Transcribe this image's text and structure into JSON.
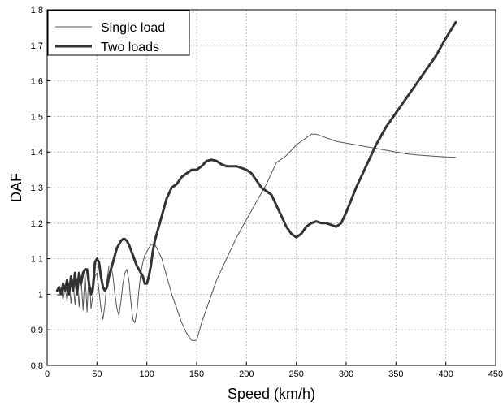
{
  "chart_data": {
    "type": "line",
    "title": "",
    "xlabel": "Speed (km/h)",
    "ylabel": "DAF",
    "xlim": [
      0,
      450
    ],
    "ylim": [
      0.8,
      1.8
    ],
    "xticks": [
      "0",
      "50",
      "100",
      "150",
      "200",
      "250",
      "300",
      "350",
      "400",
      "450"
    ],
    "yticks": [
      "0.8",
      "0.9",
      "1",
      "1.1",
      "1.2",
      "1.3",
      "1.4",
      "1.5",
      "1.6",
      "1.7",
      "1.8"
    ],
    "grid": true,
    "legend_position": "top-left",
    "series": [
      {
        "name": "Single load",
        "style": "thin",
        "color": "#555555",
        "x": [
          10,
          12,
          14,
          16,
          18,
          20,
          22,
          24,
          26,
          28,
          30,
          32,
          34,
          36,
          38,
          40,
          42,
          44,
          46,
          48,
          50,
          52,
          54,
          56,
          58,
          60,
          62,
          64,
          66,
          68,
          70,
          72,
          74,
          76,
          78,
          80,
          82,
          84,
          86,
          88,
          90,
          92,
          94,
          96,
          98,
          100,
          102,
          104,
          106,
          108,
          110,
          115,
          120,
          125,
          130,
          135,
          140,
          145,
          148,
          150,
          155,
          160,
          170,
          180,
          190,
          200,
          210,
          220,
          230,
          240,
          250,
          255,
          260,
          265,
          270,
          275,
          280,
          290,
          300,
          310,
          320,
          330,
          340,
          350,
          360,
          370,
          380,
          390,
          400,
          410
        ],
        "y": [
          1.0,
          0.995,
          1.01,
          0.985,
          1.02,
          0.98,
          1.03,
          0.975,
          1.035,
          0.97,
          1.045,
          0.965,
          1.05,
          0.955,
          1.06,
          0.95,
          1.065,
          0.96,
          1.0,
          1.05,
          1.06,
          1.01,
          0.96,
          0.93,
          0.97,
          1.04,
          1.08,
          1.08,
          1.05,
          1.0,
          0.96,
          0.94,
          0.98,
          1.03,
          1.06,
          1.07,
          1.04,
          0.98,
          0.93,
          0.92,
          0.95,
          1.01,
          1.06,
          1.09,
          1.11,
          1.12,
          1.13,
          1.14,
          1.14,
          1.14,
          1.13,
          1.1,
          1.05,
          1.0,
          0.96,
          0.92,
          0.89,
          0.87,
          0.87,
          0.87,
          0.92,
          0.96,
          1.04,
          1.1,
          1.16,
          1.21,
          1.26,
          1.31,
          1.37,
          1.39,
          1.42,
          1.43,
          1.44,
          1.45,
          1.45,
          1.445,
          1.44,
          1.43,
          1.425,
          1.42,
          1.415,
          1.41,
          1.405,
          1.4,
          1.395,
          1.392,
          1.39,
          1.388,
          1.386,
          1.385
        ]
      },
      {
        "name": "Two loads",
        "style": "thick",
        "color": "#333333",
        "x": [
          10,
          12,
          14,
          16,
          18,
          20,
          22,
          24,
          26,
          28,
          30,
          32,
          34,
          36,
          38,
          40,
          42,
          44,
          46,
          48,
          50,
          52,
          54,
          56,
          58,
          60,
          62,
          64,
          66,
          68,
          70,
          72,
          74,
          76,
          78,
          80,
          82,
          84,
          86,
          88,
          90,
          92,
          94,
          96,
          98,
          100,
          102,
          104,
          106,
          108,
          110,
          115,
          120,
          125,
          130,
          135,
          140,
          145,
          150,
          155,
          160,
          165,
          170,
          175,
          180,
          185,
          190,
          195,
          200,
          205,
          210,
          215,
          220,
          225,
          230,
          235,
          240,
          245,
          250,
          255,
          260,
          265,
          270,
          275,
          280,
          285,
          290,
          295,
          300,
          310,
          320,
          330,
          340,
          350,
          360,
          370,
          380,
          390,
          400,
          410
        ],
        "y": [
          1.01,
          1.02,
          1.0,
          1.03,
          1.01,
          1.04,
          1.0,
          1.05,
          1.01,
          1.06,
          1.0,
          1.06,
          1.03,
          1.06,
          1.07,
          1.07,
          1.03,
          1.0,
          1.02,
          1.09,
          1.1,
          1.09,
          1.05,
          1.02,
          1.01,
          1.02,
          1.05,
          1.07,
          1.09,
          1.11,
          1.13,
          1.14,
          1.15,
          1.155,
          1.155,
          1.15,
          1.14,
          1.125,
          1.11,
          1.095,
          1.08,
          1.07,
          1.06,
          1.05,
          1.03,
          1.03,
          1.05,
          1.08,
          1.12,
          1.15,
          1.17,
          1.22,
          1.27,
          1.3,
          1.31,
          1.33,
          1.34,
          1.35,
          1.35,
          1.36,
          1.375,
          1.378,
          1.375,
          1.365,
          1.36,
          1.36,
          1.36,
          1.355,
          1.35,
          1.34,
          1.32,
          1.3,
          1.29,
          1.28,
          1.25,
          1.22,
          1.19,
          1.17,
          1.16,
          1.17,
          1.19,
          1.2,
          1.205,
          1.2,
          1.2,
          1.195,
          1.19,
          1.2,
          1.23,
          1.3,
          1.36,
          1.42,
          1.47,
          1.51,
          1.55,
          1.59,
          1.63,
          1.67,
          1.72,
          1.765
        ]
      }
    ]
  }
}
